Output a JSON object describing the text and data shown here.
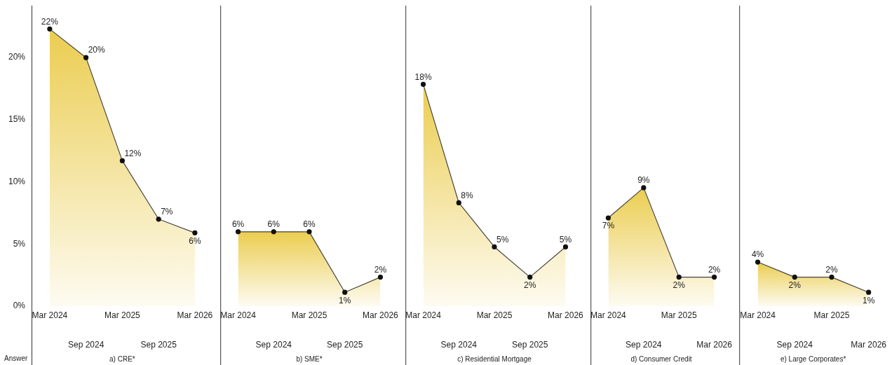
{
  "chart_data": [
    {
      "type": "area",
      "xlabel": "a) CRE*",
      "annotations": [
        "Answer"
      ],
      "categories": [
        "Mar 2024",
        "Sep 2024",
        "Mar 2025",
        "Sep 2025",
        "Mar 2026"
      ],
      "values": [
        22.3,
        20.0,
        11.7,
        7.0,
        5.9
      ],
      "value_labels": [
        "22%",
        "20%",
        "12%",
        "7%",
        "6%"
      ],
      "color": "#ebcd50",
      "marker": "circle",
      "ylim": [
        0,
        24
      ],
      "yticks": [
        {
          "value": 0,
          "label": "0%"
        },
        {
          "value": 5,
          "label": "5%"
        },
        {
          "value": 10,
          "label": "10%"
        },
        {
          "value": 15,
          "label": "15%"
        },
        {
          "value": 20,
          "label": "20%"
        }
      ]
    },
    {
      "type": "area",
      "xlabel": "b) SME*",
      "categories": [
        "Mar 2024",
        "Sep 2024",
        "Mar 2025",
        "Sep 2025",
        "Mar 2026"
      ],
      "values": [
        5.9,
        5.9,
        5.9,
        1.1,
        2.3
      ],
      "value_labels": [
        "6%",
        "6%",
        "6%",
        "1%",
        "2%"
      ],
      "color": "#ebcd50",
      "marker": "circle",
      "ylim": [
        0,
        24
      ],
      "tick_labels": "x"
    },
    {
      "type": "area",
      "xlabel": "c) Residential Mortgage",
      "categories": [
        "Mar 2024",
        "Sep 2024",
        "Mar 2025",
        "Sep 2025",
        "Mar 2026"
      ],
      "values": [
        17.6,
        8.2,
        4.7,
        2.3,
        4.7
      ],
      "value_labels": [
        "18%",
        "8%",
        "5%",
        "2%",
        "5%"
      ],
      "color": "#ebcd50",
      "marker": "circle",
      "ylim": [
        0,
        24
      ],
      "tick_labels": "x"
    },
    {
      "type": "area",
      "xlabel": "d) Consumer Credit",
      "categories": [
        "Mar 2024",
        "Sep 2024",
        "Mar 2025",
        "Mar 2026"
      ],
      "values": [
        7.0,
        9.4,
        2.3,
        2.3
      ],
      "value_labels": [
        "7%",
        "9%",
        "2%",
        "2%"
      ],
      "color": "#ebcd50",
      "marker": "circle",
      "ylim": [
        0,
        24
      ],
      "tick_labels": "x"
    },
    {
      "type": "area",
      "xlabel": "e) Large Corporates*",
      "categories": [
        "Mar 2024",
        "Sep 2024",
        "Mar 2025",
        "Mar 2026"
      ],
      "values": [
        3.5,
        2.3,
        2.3,
        1.1
      ],
      "value_labels": [
        "4%",
        "2%",
        "2%",
        "1%"
      ],
      "color": "#ebcd50",
      "marker": "circle",
      "ylim": [
        0,
        24
      ],
      "tick_labels": "x"
    }
  ]
}
